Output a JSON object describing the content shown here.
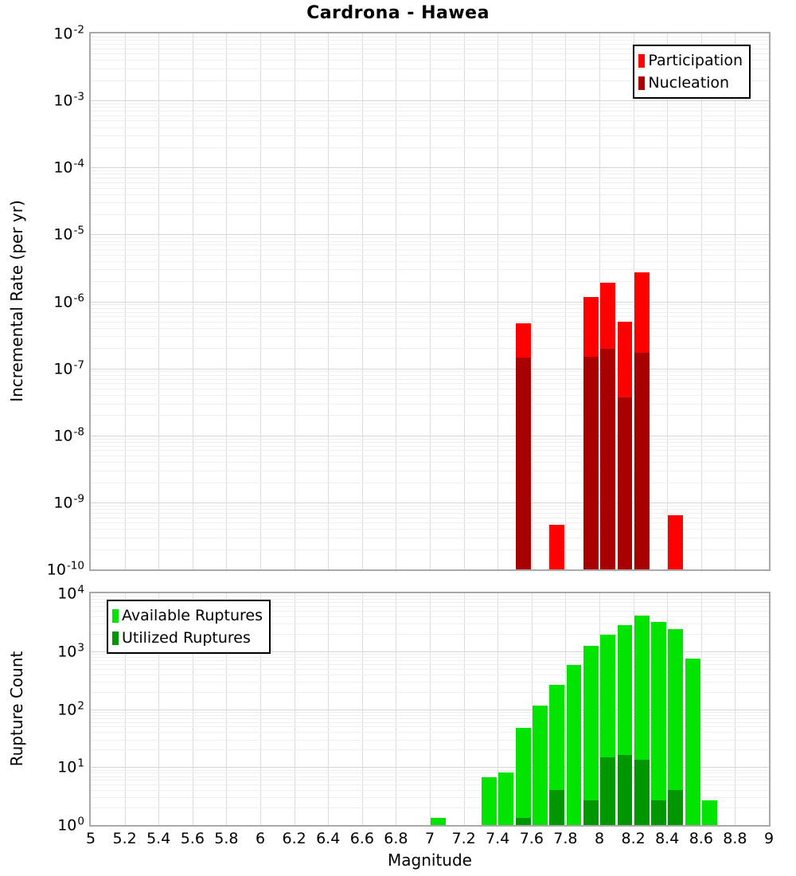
{
  "title": "Cardrona - Hawea",
  "x_axis": {
    "label": "Magnitude",
    "min": 5,
    "max": 9,
    "tick_labels": [
      "5",
      "5.2",
      "5.4",
      "5.6",
      "5.8",
      "6",
      "6.2",
      "6.4",
      "6.6",
      "6.8",
      "7",
      "7.2",
      "7.4",
      "7.6",
      "7.8",
      "8",
      "8.2",
      "8.4",
      "8.6",
      "8.8",
      "9"
    ]
  },
  "chart_data": [
    {
      "type": "bar",
      "title": "Cardrona - Hawea",
      "xlabel": "Magnitude",
      "ylabel": "Incremental Rate (per yr)",
      "yscale": "log",
      "ylim": [
        1e-10,
        0.01
      ],
      "xlim": [
        5,
        9
      ],
      "grid": true,
      "legend_position": "top-right",
      "y_tick_base": "10",
      "y_tick_exponents": [
        "-2",
        "-3",
        "-4",
        "-5",
        "-6",
        "-7",
        "-8",
        "-9",
        "-10"
      ],
      "bin_width": 0.1,
      "series": [
        {
          "name": "Participation",
          "color": "#ff0000",
          "points": [
            [
              7.55,
              4.7e-07
            ],
            [
              7.75,
              4.6e-10
            ],
            [
              7.95,
              1.15e-06
            ],
            [
              8.05,
              1.9e-06
            ],
            [
              8.15,
              5e-07
            ],
            [
              8.25,
              2.7e-06
            ],
            [
              8.45,
              6.5e-10
            ]
          ]
        },
        {
          "name": "Nucleation",
          "color": "#a80000",
          "points": [
            [
              7.55,
              1.45e-07
            ],
            [
              7.95,
              1.5e-07
            ],
            [
              8.05,
              1.95e-07
            ],
            [
              8.15,
              3.7e-08
            ],
            [
              8.25,
              1.7e-07
            ]
          ]
        }
      ]
    },
    {
      "type": "bar",
      "title": "",
      "xlabel": "Magnitude",
      "ylabel": "Rupture Count",
      "yscale": "log",
      "ylim": [
        1,
        10000
      ],
      "xlim": [
        5,
        9
      ],
      "grid": true,
      "legend_position": "top-left",
      "y_tick_base": "10",
      "y_tick_exponents": [
        "4",
        "3",
        "2",
        "1",
        "0"
      ],
      "bin_width": 0.1,
      "bar_base_value": 0.75,
      "series": [
        {
          "name": "Available Ruptures",
          "color": "#00e400",
          "points": [
            [
              7.05,
              1
            ],
            [
              7.35,
              5
            ],
            [
              7.45,
              6
            ],
            [
              7.55,
              36
            ],
            [
              7.65,
              86
            ],
            [
              7.75,
              195
            ],
            [
              7.85,
              430
            ],
            [
              7.95,
              930
            ],
            [
              8.05,
              1440
            ],
            [
              8.15,
              2130
            ],
            [
              8.25,
              3100
            ],
            [
              8.35,
              2400
            ],
            [
              8.45,
              1820
            ],
            [
              8.55,
              560
            ],
            [
              8.65,
              2
            ]
          ]
        },
        {
          "name": "Utilized Ruptures",
          "color": "#009600",
          "points": [
            [
              7.55,
              1
            ],
            [
              7.75,
              3
            ],
            [
              7.95,
              2
            ],
            [
              8.05,
              11
            ],
            [
              8.15,
              12
            ],
            [
              8.25,
              10
            ],
            [
              8.35,
              2
            ],
            [
              8.45,
              3
            ]
          ]
        }
      ]
    }
  ]
}
